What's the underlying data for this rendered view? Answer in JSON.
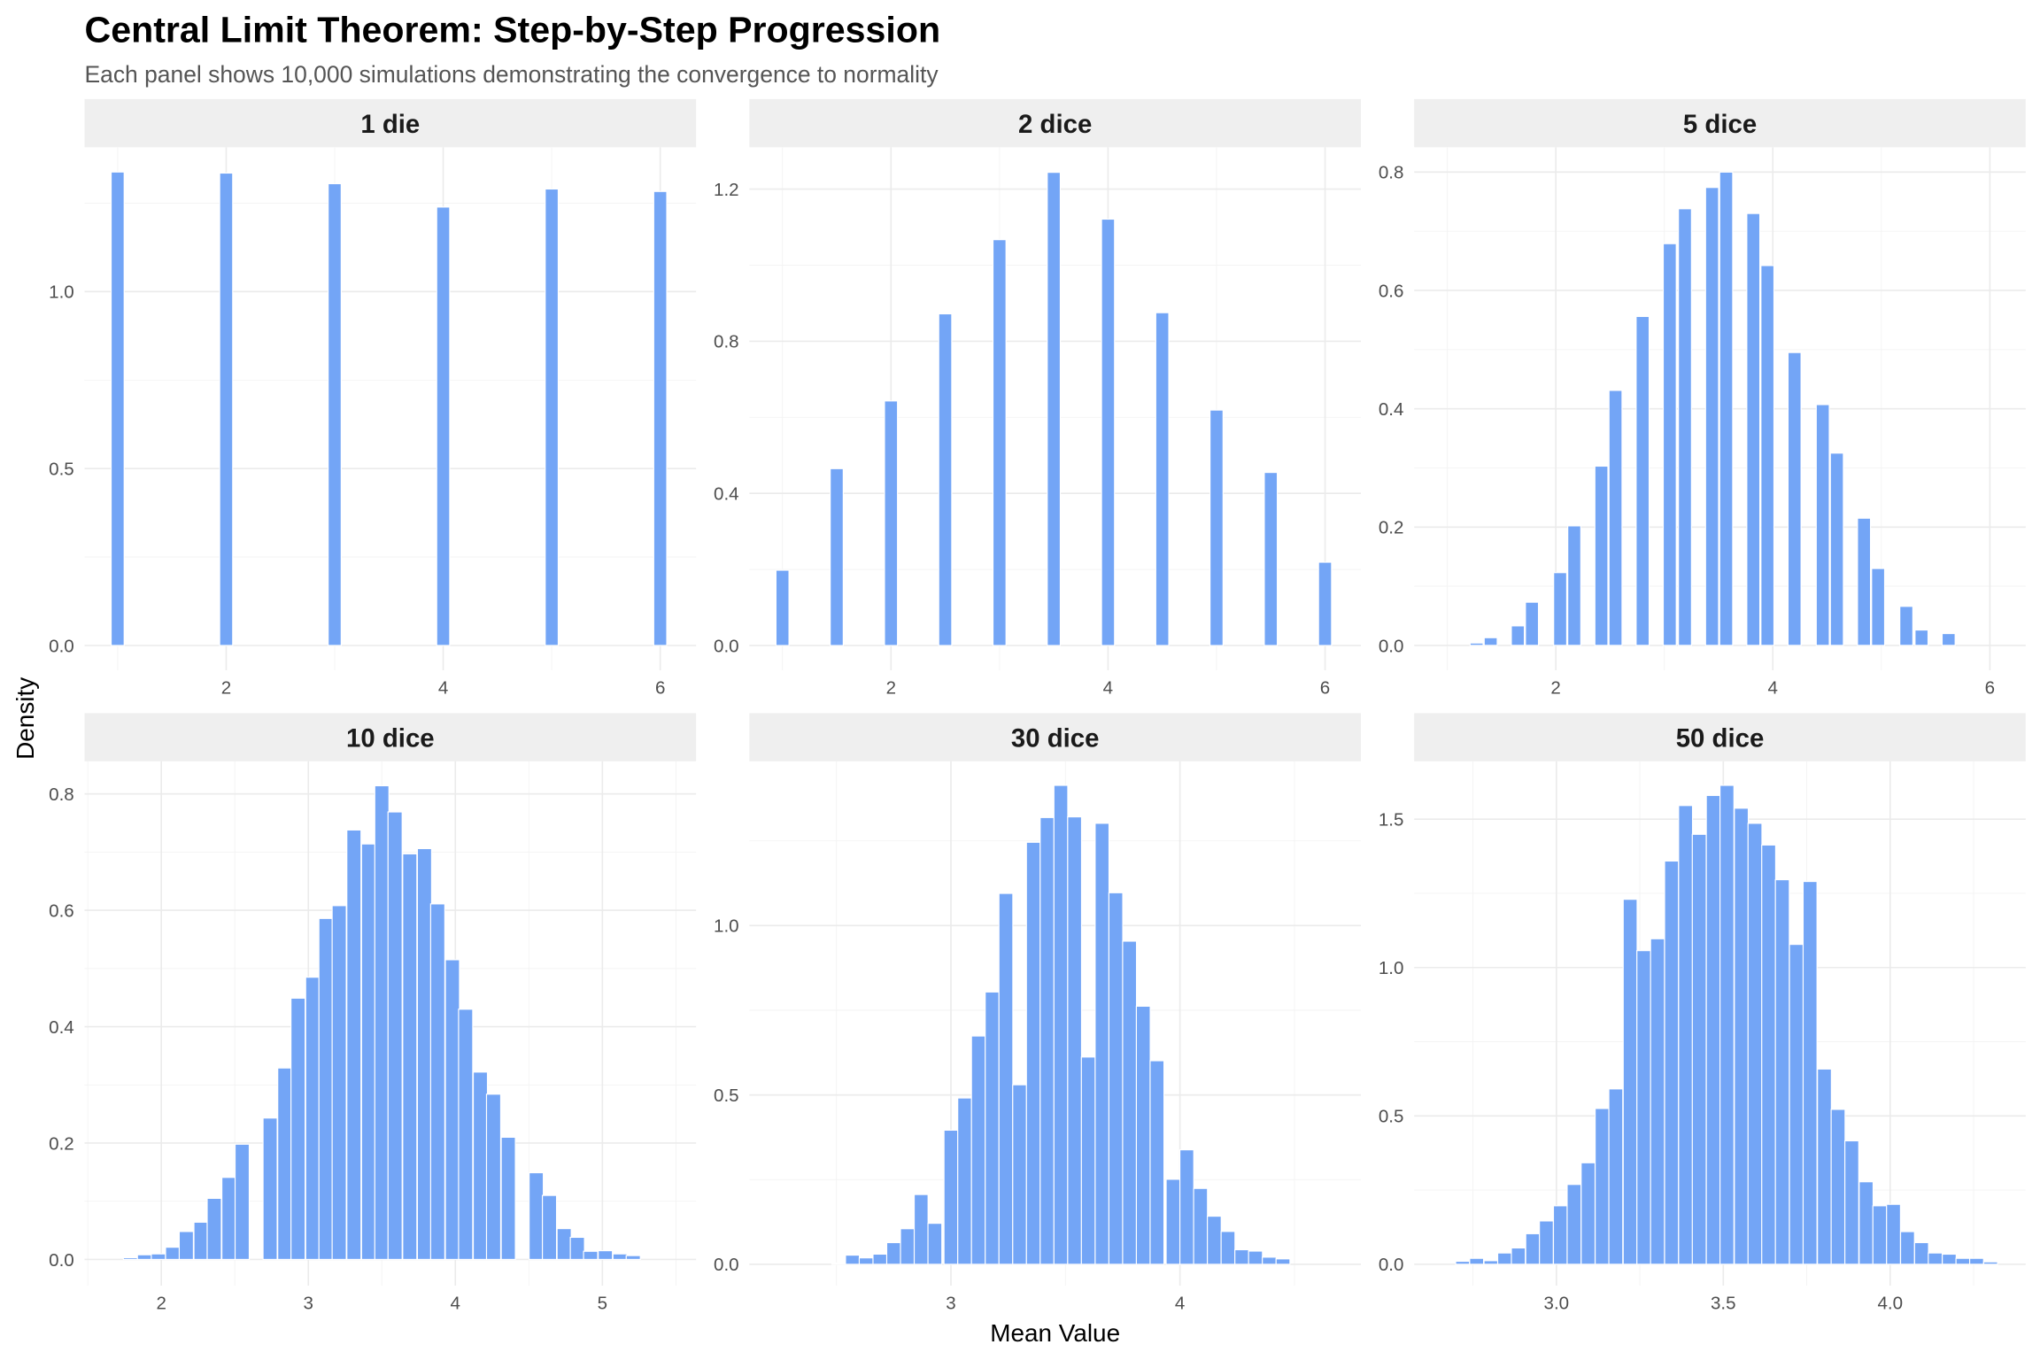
{
  "title": "Central Limit Theorem: Step-by-Step Progression",
  "subtitle": "Each panel shows 10,000 simulations demonstrating the convergence to normality",
  "xlabel": "Mean Value",
  "ylabel": "Density",
  "colors": {
    "bar": "#73a5f6",
    "strip": "#efefef"
  },
  "chart_data": [
    {
      "type": "bar",
      "title": "1 die",
      "binwidth": 0.12,
      "xlim": [
        0.695,
        6.33
      ],
      "ylim": [
        -0.07,
        1.408
      ],
      "xticks": [
        2,
        4,
        6
      ],
      "xtick_labels": [
        "2",
        "4",
        "6"
      ],
      "xminor": [
        1,
        3,
        5
      ],
      "yticks": [
        0,
        0.5,
        1.0
      ],
      "ytick_labels": [
        "0.0",
        "0.5",
        "1.0"
      ],
      "yminor": [
        0.25,
        0.75,
        1.25
      ],
      "bars": [
        [
          1,
          1.338
        ],
        [
          2,
          1.335
        ],
        [
          3,
          1.305
        ],
        [
          4,
          1.239
        ],
        [
          5,
          1.29
        ],
        [
          6,
          1.283
        ]
      ]
    },
    {
      "type": "bar",
      "title": "2 dice",
      "binwidth": 0.12,
      "xlim": [
        0.695,
        6.33
      ],
      "ylim": [
        -0.065,
        1.31
      ],
      "xticks": [
        2,
        4,
        6
      ],
      "xtick_labels": [
        "2",
        "4",
        "6"
      ],
      "xminor": [
        1,
        3,
        5
      ],
      "yticks": [
        0,
        0.4,
        0.8,
        1.2
      ],
      "ytick_labels": [
        "0.0",
        "0.4",
        "0.8",
        "1.2"
      ],
      "yminor": [
        0.2,
        0.6,
        1.0
      ],
      "bars": [
        [
          1,
          0.198
        ],
        [
          1.5,
          0.465
        ],
        [
          2,
          0.643
        ],
        [
          2.5,
          0.872
        ],
        [
          3,
          1.067
        ],
        [
          3.5,
          1.244
        ],
        [
          4,
          1.121
        ],
        [
          4.5,
          0.875
        ],
        [
          5,
          0.619
        ],
        [
          5.5,
          0.455
        ],
        [
          6,
          0.219
        ]
      ]
    },
    {
      "type": "bar",
      "title": "5 dice",
      "binwidth": 0.12,
      "xlim": [
        0.695,
        6.33
      ],
      "ylim": [
        -0.042,
        0.842
      ],
      "xticks": [
        2,
        4,
        6
      ],
      "xtick_labels": [
        "2",
        "4",
        "6"
      ],
      "xminor": [
        1,
        3,
        5
      ],
      "yticks": [
        0,
        0.2,
        0.4,
        0.6,
        0.8
      ],
      "ytick_labels": [
        "0.0",
        "0.2",
        "0.4",
        "0.6",
        "0.8"
      ],
      "yminor": [
        0.1,
        0.3,
        0.5,
        0.7
      ],
      "bars": [
        [
          1.27,
          0.004
        ],
        [
          1.4,
          0.013
        ],
        [
          1.65,
          0.033
        ],
        [
          1.78,
          0.073
        ],
        [
          2.04,
          0.123
        ],
        [
          2.17,
          0.202
        ],
        [
          2.42,
          0.303
        ],
        [
          2.55,
          0.431
        ],
        [
          2.8,
          0.556
        ],
        [
          3.05,
          0.679
        ],
        [
          3.19,
          0.738
        ],
        [
          3.44,
          0.774
        ],
        [
          3.57,
          0.8
        ],
        [
          3.82,
          0.73
        ],
        [
          3.95,
          0.642
        ],
        [
          4.2,
          0.495
        ],
        [
          4.46,
          0.407
        ],
        [
          4.59,
          0.325
        ],
        [
          4.84,
          0.215
        ],
        [
          4.97,
          0.13
        ],
        [
          5.23,
          0.066
        ],
        [
          5.37,
          0.026
        ],
        [
          5.62,
          0.02
        ]
      ]
    },
    {
      "type": "bar",
      "title": "10 dice",
      "binwidth": 0.0963,
      "xlim": [
        1.478,
        5.637
      ],
      "ylim": [
        -0.045,
        0.856
      ],
      "xticks": [
        2,
        3,
        4,
        5
      ],
      "xtick_labels": [
        "2",
        "3",
        "4",
        "5"
      ],
      "xminor": [
        1.5,
        2.5,
        3.5,
        4.5,
        5.5
      ],
      "yticks": [
        0,
        0.2,
        0.4,
        0.6,
        0.8
      ],
      "ytick_labels": [
        "0.0",
        "0.2",
        "0.4",
        "0.6",
        "0.8"
      ],
      "yminor": [
        0.1,
        0.3,
        0.5,
        0.7
      ],
      "bars": [
        [
          1.79,
          0.003
        ],
        [
          1.886,
          0.008
        ],
        [
          1.98,
          0.0095
        ],
        [
          2.077,
          0.021
        ],
        [
          2.17,
          0.048
        ],
        [
          2.27,
          0.064
        ],
        [
          2.36,
          0.105
        ],
        [
          2.46,
          0.141
        ],
        [
          2.55,
          0.198
        ],
        [
          2.74,
          0.243
        ],
        [
          2.84,
          0.329
        ],
        [
          2.93,
          0.449
        ],
        [
          3.03,
          0.485
        ],
        [
          3.12,
          0.586
        ],
        [
          3.21,
          0.608
        ],
        [
          3.31,
          0.738
        ],
        [
          3.41,
          0.714
        ],
        [
          3.5,
          0.814
        ],
        [
          3.59,
          0.769
        ],
        [
          3.69,
          0.697
        ],
        [
          3.79,
          0.706
        ],
        [
          3.88,
          0.611
        ],
        [
          3.98,
          0.515
        ],
        [
          4.07,
          0.43
        ],
        [
          4.17,
          0.322
        ],
        [
          4.26,
          0.284
        ],
        [
          4.36,
          0.21
        ],
        [
          4.55,
          0.149
        ],
        [
          4.64,
          0.11
        ],
        [
          4.74,
          0.053
        ],
        [
          4.83,
          0.038
        ],
        [
          4.92,
          0.014
        ],
        [
          5.02,
          0.015
        ],
        [
          5.12,
          0.0095
        ],
        [
          5.21,
          0.0066
        ]
      ]
    },
    {
      "type": "bar",
      "title": "30 dice",
      "binwidth": 0.0606,
      "xlim": [
        2.12,
        4.79
      ],
      "ylim": [
        -0.063,
        1.485
      ],
      "xticks": [
        3,
        4
      ],
      "xtick_labels": [
        "3",
        "4"
      ],
      "xminor": [
        2.5,
        3.5,
        4.5
      ],
      "yticks": [
        0,
        0.5,
        1.0
      ],
      "ytick_labels": [
        "0.0",
        "0.5",
        "1.0"
      ],
      "yminor": [
        0.25,
        0.75,
        1.25
      ],
      "bars": [
        [
          2.51,
          0.003
        ],
        [
          2.57,
          0.027
        ],
        [
          2.63,
          0.019
        ],
        [
          2.69,
          0.03
        ],
        [
          2.75,
          0.064
        ],
        [
          2.81,
          0.105
        ],
        [
          2.87,
          0.206
        ],
        [
          2.93,
          0.121
        ],
        [
          3.0,
          0.396
        ],
        [
          3.06,
          0.491
        ],
        [
          3.12,
          0.674
        ],
        [
          3.18,
          0.804
        ],
        [
          3.24,
          1.095
        ],
        [
          3.3,
          0.53
        ],
        [
          3.36,
          1.246
        ],
        [
          3.42,
          1.319
        ],
        [
          3.48,
          1.414
        ],
        [
          3.54,
          1.321
        ],
        [
          3.6,
          0.612
        ],
        [
          3.66,
          1.302
        ],
        [
          3.72,
          1.097
        ],
        [
          3.78,
          0.954
        ],
        [
          3.84,
          0.762
        ],
        [
          3.9,
          0.601
        ],
        [
          3.97,
          0.251
        ],
        [
          4.03,
          0.338
        ],
        [
          4.09,
          0.224
        ],
        [
          4.15,
          0.142
        ],
        [
          4.21,
          0.097
        ],
        [
          4.27,
          0.043
        ],
        [
          4.33,
          0.039
        ],
        [
          4.39,
          0.021
        ],
        [
          4.45,
          0.016
        ]
      ]
    },
    {
      "type": "bar",
      "title": "50 dice",
      "binwidth": 0.0417,
      "xlim": [
        2.574,
        4.406
      ],
      "ylim": [
        -0.072,
        1.695
      ],
      "xticks": [
        3.0,
        3.5,
        4.0
      ],
      "xtick_labels": [
        "3.0",
        "3.5",
        "4.0"
      ],
      "xminor": [
        2.75,
        3.25,
        3.75,
        4.25
      ],
      "yticks": [
        0,
        0.5,
        1.0,
        1.5
      ],
      "ytick_labels": [
        "0.0",
        "0.5",
        "1.0",
        "1.5"
      ],
      "yminor": [
        0.25,
        0.75,
        1.25
      ],
      "bars": [
        [
          2.719,
          0.01
        ],
        [
          2.761,
          0.02
        ],
        [
          2.804,
          0.012
        ],
        [
          2.845,
          0.038
        ],
        [
          2.886,
          0.055
        ],
        [
          2.929,
          0.103
        ],
        [
          2.97,
          0.146
        ],
        [
          3.012,
          0.197
        ],
        [
          3.053,
          0.269
        ],
        [
          3.095,
          0.342
        ],
        [
          3.137,
          0.525
        ],
        [
          3.178,
          0.591
        ],
        [
          3.221,
          1.23
        ],
        [
          3.262,
          1.057
        ],
        [
          3.303,
          1.097
        ],
        [
          3.345,
          1.359
        ],
        [
          3.387,
          1.546
        ],
        [
          3.428,
          1.449
        ],
        [
          3.47,
          1.58
        ],
        [
          3.511,
          1.614
        ],
        [
          3.554,
          1.537
        ],
        [
          3.595,
          1.486
        ],
        [
          3.636,
          1.413
        ],
        [
          3.677,
          1.296
        ],
        [
          3.719,
          1.078
        ],
        [
          3.76,
          1.29
        ],
        [
          3.803,
          0.658
        ],
        [
          3.844,
          0.522
        ],
        [
          3.885,
          0.416
        ],
        [
          3.928,
          0.278
        ],
        [
          3.969,
          0.197
        ],
        [
          4.01,
          0.202
        ],
        [
          4.052,
          0.11
        ],
        [
          4.094,
          0.073
        ],
        [
          4.135,
          0.038
        ],
        [
          4.177,
          0.034
        ],
        [
          4.218,
          0.02
        ],
        [
          4.259,
          0.02
        ],
        [
          4.301,
          0.008
        ]
      ]
    }
  ]
}
